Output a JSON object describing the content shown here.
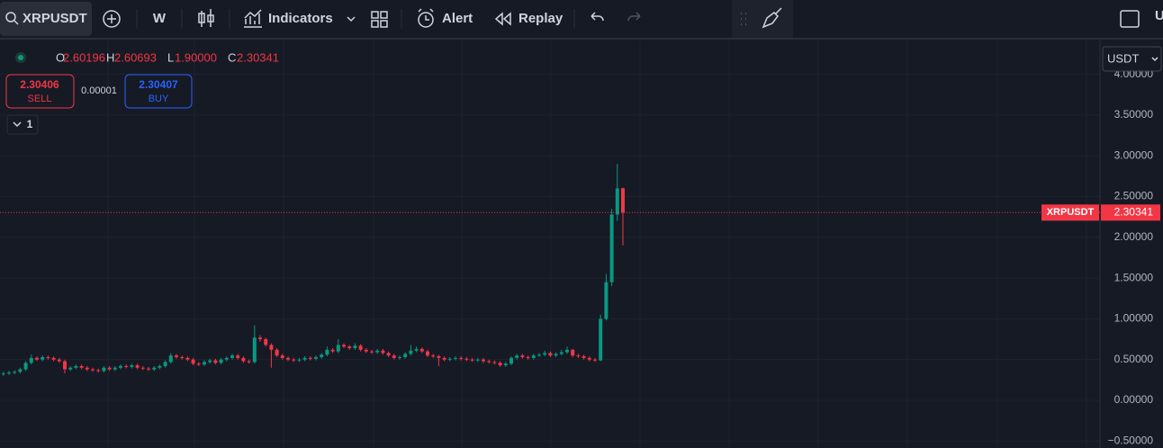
{
  "toolbar": {
    "interval": "W",
    "indicators": "Indicators",
    "alert": "Alert",
    "replay": "Replay",
    "cut_label": "U"
  },
  "legend": {
    "ohlc": [
      {
        "label": "O",
        "value": "2.60196"
      },
      {
        "label": "H",
        "value": "2.60693"
      },
      {
        "label": "L",
        "value": "1.90000"
      },
      {
        "label": "C",
        "value": "2.30341"
      }
    ]
  },
  "trade": {
    "sell_price": 2.30406,
    "sell": "SELL",
    "spread": 1e-05,
    "buy_price": 2.30407,
    "buy": "BUY"
  },
  "collapse_count": 1,
  "currency": "USDT",
  "chart_data": {
    "type": "candlestick",
    "symbol": "XRPUSDT",
    "colors": {
      "up": "#089981",
      "down": "#f23645"
    },
    "open": [
      0.32,
      0.33,
      0.34,
      0.35,
      0.38,
      0.46,
      0.52,
      0.5,
      0.53,
      0.52,
      0.5,
      0.48,
      0.38,
      0.4,
      0.42,
      0.4,
      0.38,
      0.37,
      0.36,
      0.4,
      0.38,
      0.4,
      0.42,
      0.41,
      0.43,
      0.4,
      0.39,
      0.38,
      0.4,
      0.42,
      0.47,
      0.55,
      0.53,
      0.52,
      0.5,
      0.45,
      0.44,
      0.47,
      0.49,
      0.46,
      0.5,
      0.52,
      0.55,
      0.52,
      0.48,
      0.47,
      0.77,
      0.75,
      0.68,
      0.62,
      0.55,
      0.52,
      0.5,
      0.49,
      0.5,
      0.52,
      0.51,
      0.53,
      0.56,
      0.62,
      0.6,
      0.68,
      0.66,
      0.64,
      0.67,
      0.62,
      0.6,
      0.59,
      0.61,
      0.58,
      0.55,
      0.52,
      0.53,
      0.57,
      0.61,
      0.63,
      0.6,
      0.55,
      0.54,
      0.52,
      0.5,
      0.51,
      0.52,
      0.51,
      0.5,
      0.49,
      0.5,
      0.48,
      0.47,
      0.46,
      0.43,
      0.45,
      0.52,
      0.55,
      0.53,
      0.52,
      0.55,
      0.56,
      0.58,
      0.55,
      0.57,
      0.59,
      0.62,
      0.55,
      0.54,
      0.52,
      0.5,
      0.49,
      1.0,
      1.45,
      2.28,
      2.60196
    ],
    "high": [
      0.35,
      0.36,
      0.37,
      0.4,
      0.48,
      0.56,
      0.54,
      0.55,
      0.55,
      0.54,
      0.52,
      0.5,
      0.42,
      0.44,
      0.44,
      0.42,
      0.4,
      0.39,
      0.42,
      0.42,
      0.42,
      0.44,
      0.44,
      0.45,
      0.45,
      0.42,
      0.41,
      0.42,
      0.44,
      0.49,
      0.58,
      0.57,
      0.55,
      0.54,
      0.52,
      0.47,
      0.49,
      0.51,
      0.51,
      0.52,
      0.54,
      0.57,
      0.57,
      0.54,
      0.5,
      0.92,
      0.8,
      0.77,
      0.7,
      0.64,
      0.57,
      0.54,
      0.52,
      0.52,
      0.54,
      0.54,
      0.55,
      0.58,
      0.66,
      0.64,
      0.75,
      0.7,
      0.68,
      0.7,
      0.69,
      0.64,
      0.62,
      0.63,
      0.63,
      0.6,
      0.57,
      0.55,
      0.59,
      0.68,
      0.66,
      0.65,
      0.62,
      0.57,
      0.56,
      0.54,
      0.53,
      0.54,
      0.54,
      0.53,
      0.52,
      0.52,
      0.52,
      0.5,
      0.49,
      0.48,
      0.47,
      0.54,
      0.57,
      0.57,
      0.55,
      0.57,
      0.58,
      0.61,
      0.6,
      0.59,
      0.62,
      0.66,
      0.63,
      0.57,
      0.56,
      0.54,
      0.52,
      1.05,
      1.55,
      2.35,
      2.9,
      2.60693
    ],
    "low": [
      0.3,
      0.31,
      0.32,
      0.33,
      0.36,
      0.44,
      0.48,
      0.48,
      0.5,
      0.48,
      0.46,
      0.33,
      0.36,
      0.38,
      0.38,
      0.36,
      0.35,
      0.34,
      0.34,
      0.36,
      0.36,
      0.38,
      0.39,
      0.39,
      0.38,
      0.37,
      0.36,
      0.36,
      0.38,
      0.4,
      0.45,
      0.51,
      0.5,
      0.48,
      0.43,
      0.42,
      0.42,
      0.45,
      0.44,
      0.44,
      0.48,
      0.5,
      0.5,
      0.46,
      0.45,
      0.45,
      0.72,
      0.66,
      0.4,
      0.53,
      0.5,
      0.48,
      0.47,
      0.47,
      0.48,
      0.49,
      0.49,
      0.51,
      0.54,
      0.58,
      0.58,
      0.64,
      0.62,
      0.62,
      0.6,
      0.58,
      0.57,
      0.57,
      0.56,
      0.53,
      0.5,
      0.5,
      0.51,
      0.55,
      0.59,
      0.58,
      0.53,
      0.52,
      0.42,
      0.48,
      0.48,
      0.49,
      0.49,
      0.48,
      0.47,
      0.47,
      0.46,
      0.45,
      0.44,
      0.41,
      0.41,
      0.43,
      0.5,
      0.51,
      0.5,
      0.5,
      0.53,
      0.54,
      0.53,
      0.53,
      0.55,
      0.57,
      0.53,
      0.52,
      0.5,
      0.48,
      0.47,
      0.48,
      0.98,
      1.4,
      2.2,
      1.9
    ],
    "close": [
      0.33,
      0.34,
      0.35,
      0.38,
      0.46,
      0.52,
      0.5,
      0.53,
      0.52,
      0.5,
      0.48,
      0.38,
      0.4,
      0.42,
      0.4,
      0.38,
      0.37,
      0.36,
      0.4,
      0.38,
      0.4,
      0.42,
      0.41,
      0.43,
      0.4,
      0.39,
      0.38,
      0.4,
      0.42,
      0.47,
      0.55,
      0.53,
      0.52,
      0.5,
      0.45,
      0.44,
      0.47,
      0.49,
      0.46,
      0.5,
      0.52,
      0.55,
      0.52,
      0.48,
      0.47,
      0.77,
      0.75,
      0.68,
      0.62,
      0.55,
      0.52,
      0.5,
      0.49,
      0.5,
      0.52,
      0.51,
      0.53,
      0.56,
      0.62,
      0.6,
      0.68,
      0.66,
      0.64,
      0.67,
      0.62,
      0.6,
      0.59,
      0.61,
      0.58,
      0.55,
      0.52,
      0.53,
      0.57,
      0.61,
      0.63,
      0.6,
      0.55,
      0.54,
      0.52,
      0.5,
      0.51,
      0.52,
      0.51,
      0.5,
      0.49,
      0.5,
      0.48,
      0.47,
      0.46,
      0.43,
      0.45,
      0.52,
      0.55,
      0.53,
      0.52,
      0.55,
      0.56,
      0.58,
      0.55,
      0.57,
      0.59,
      0.62,
      0.55,
      0.54,
      0.52,
      0.5,
      0.49,
      1.0,
      1.45,
      2.28,
      2.6,
      2.30341
    ],
    "ylim": [
      -0.585,
      4.426
    ],
    "yticks": [
      {
        "value": -0.5,
        "label": "−0.50000"
      },
      {
        "value": 0,
        "label": "0.00000"
      },
      {
        "value": 0.5,
        "label": "0.50000"
      },
      {
        "value": 1,
        "label": "1.00000"
      },
      {
        "value": 1.5,
        "label": "1.50000"
      },
      {
        "value": 2,
        "label": "2.00000"
      },
      {
        "value": 2.5,
        "label": "2.50000"
      },
      {
        "value": 3,
        "label": "3.00000"
      },
      {
        "value": 3.5,
        "label": "3.50000"
      },
      {
        "value": 4,
        "label": "4.00000"
      }
    ],
    "grid": true
  }
}
